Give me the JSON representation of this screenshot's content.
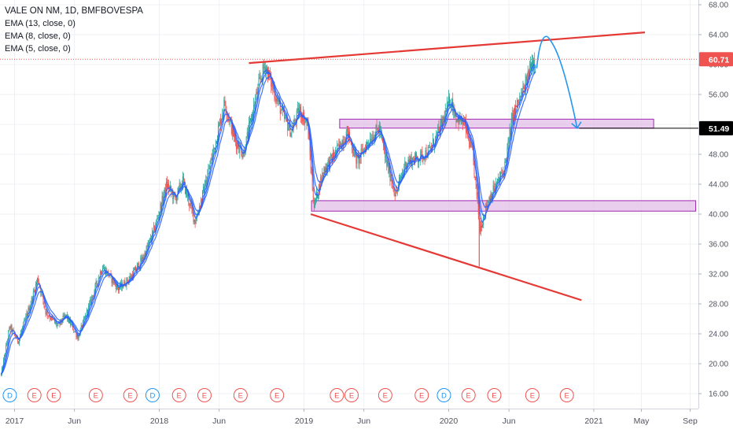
{
  "legend": {
    "title": "VALE ON NM, 1D, BMFBOVESPA",
    "ema13": "EMA (13, close, 0)",
    "ema8": "EMA (8, close, 0)",
    "ema5": "EMA (5, close, 0)"
  },
  "colors": {
    "up": "#26a69a",
    "down": "#ef5350",
    "ema": "#2962ff",
    "trendline": "#e53935",
    "zone_fill": "#e1bee7",
    "zone_border": "#9c27b0",
    "projection": "#2196f3",
    "grid": "#eef0f3",
    "price_tag_red": "#ef5350",
    "price_tag_black": "#000000"
  },
  "price_tags": {
    "current": "60.71",
    "target": "51.49"
  },
  "chart_data": {
    "type": "candlestick",
    "title": "VALE ON NM, 1D, BMFBOVESPA",
    "series": [
      {
        "name": "EMA (13, close, 0)"
      },
      {
        "name": "EMA (8, close, 0)"
      },
      {
        "name": "EMA (5, close, 0)"
      }
    ],
    "y_ticks": [
      "16.00",
      "20.00",
      "24.00",
      "28.00",
      "32.00",
      "36.00",
      "40.00",
      "44.00",
      "48.00",
      "52.00",
      "56.00",
      "60.00",
      "64.00",
      "68.00"
    ],
    "ylim": [
      14.5,
      68.5
    ],
    "x_ticks": [
      "2017",
      "Jun",
      "2018",
      "Jun",
      "2019",
      "Jun",
      "2020",
      "Jun",
      "2021",
      "May",
      "Sep"
    ],
    "x_tick_dates": [
      "2017-01-01",
      "2017-06-01",
      "2018-01-01",
      "2018-06-01",
      "2019-01-01",
      "2019-06-01",
      "2020-01-01",
      "2020-06-01",
      "2021-01-01",
      "2021-05-01",
      "2021-09-01"
    ],
    "price_path": [
      [
        "2016-11-28",
        18.5
      ],
      [
        "2016-12-20",
        25.0
      ],
      [
        "2017-01-10",
        23.0
      ],
      [
        "2017-02-10",
        28.0
      ],
      [
        "2017-03-01",
        31.5
      ],
      [
        "2017-03-20",
        27.0
      ],
      [
        "2017-04-20",
        25.0
      ],
      [
        "2017-05-10",
        26.5
      ],
      [
        "2017-06-10",
        23.5
      ],
      [
        "2017-07-10",
        28.0
      ],
      [
        "2017-08-10",
        33.0
      ],
      [
        "2017-08-25",
        32.0
      ],
      [
        "2017-09-20",
        30.0
      ],
      [
        "2017-10-20",
        31.5
      ],
      [
        "2017-11-20",
        34.0
      ],
      [
        "2017-12-20",
        38.0
      ],
      [
        "2018-01-20",
        44.0
      ],
      [
        "2018-02-10",
        42.0
      ],
      [
        "2018-03-01",
        44.5
      ],
      [
        "2018-04-01",
        39.0
      ],
      [
        "2018-04-20",
        42.5
      ],
      [
        "2018-05-20",
        49.0
      ],
      [
        "2018-06-15",
        55.0
      ],
      [
        "2018-07-10",
        50.0
      ],
      [
        "2018-08-01",
        48.0
      ],
      [
        "2018-08-20",
        52.5
      ],
      [
        "2018-09-10",
        57.5
      ],
      [
        "2018-09-25",
        60.0
      ],
      [
        "2018-10-20",
        56.0
      ],
      [
        "2018-11-10",
        53.0
      ],
      [
        "2018-11-30",
        51.0
      ],
      [
        "2018-12-20",
        54.0
      ],
      [
        "2019-01-10",
        52.0
      ],
      [
        "2019-01-26",
        41.0
      ],
      [
        "2019-02-20",
        46.0
      ],
      [
        "2019-03-20",
        48.0
      ],
      [
        "2019-04-20",
        51.0
      ],
      [
        "2019-05-15",
        47.0
      ],
      [
        "2019-06-15",
        50.0
      ],
      [
        "2019-07-10",
        51.5
      ],
      [
        "2019-07-25",
        47.5
      ],
      [
        "2019-08-20",
        42.5
      ],
      [
        "2019-09-15",
        47.0
      ],
      [
        "2019-10-15",
        47.5
      ],
      [
        "2019-11-15",
        48.5
      ],
      [
        "2019-12-15",
        52.0
      ],
      [
        "2020-01-05",
        55.5
      ],
      [
        "2020-01-20",
        53.0
      ],
      [
        "2020-02-10",
        52.0
      ],
      [
        "2020-03-01",
        48.0
      ],
      [
        "2020-03-20",
        38.0
      ],
      [
        "2020-04-10",
        42.0
      ],
      [
        "2020-05-01",
        44.0
      ],
      [
        "2020-05-20",
        46.0
      ],
      [
        "2020-06-10",
        53.0
      ],
      [
        "2020-06-25",
        55.0
      ],
      [
        "2020-07-15",
        57.5
      ],
      [
        "2020-07-28",
        60.5
      ],
      [
        "2020-08-07",
        60.7
      ]
    ],
    "annotations": {
      "upper_trendline": [
        [
          "2018-08-15",
          60.2
        ],
        [
          "2021-05-10",
          64.3
        ]
      ],
      "lower_trendline": [
        [
          "2019-01-18",
          40.0
        ],
        [
          "2020-12-01",
          28.5
        ]
      ],
      "resistance_zone": {
        "start": "2019-04-01",
        "end": "2021-06-01",
        "low": 51.5,
        "high": 52.7
      },
      "support_zone": {
        "start": "2019-01-20",
        "end": "2021-09-15",
        "low": 40.4,
        "high": 41.8
      },
      "projection_arrow": [
        [
          "2020-08-10",
          59.5
        ],
        [
          "2020-09-10",
          63.5
        ],
        [
          "2020-10-10",
          62.0
        ],
        [
          "2020-11-20",
          51.5
        ]
      ],
      "current_price_line": 60.71,
      "target_price_line": 51.49
    },
    "events": [
      {
        "label": "D",
        "kind": "dividend",
        "date": "2016-12-20"
      },
      {
        "label": "E",
        "kind": "earnings",
        "date": "2017-02-20"
      },
      {
        "label": "E",
        "kind": "earnings",
        "date": "2017-04-10"
      },
      {
        "label": "E",
        "kind": "earnings",
        "date": "2017-07-25"
      },
      {
        "label": "E",
        "kind": "earnings",
        "date": "2017-10-20"
      },
      {
        "label": "D",
        "kind": "dividend",
        "date": "2017-12-15"
      },
      {
        "label": "E",
        "kind": "earnings",
        "date": "2018-02-20"
      },
      {
        "label": "E",
        "kind": "earnings",
        "date": "2018-04-25"
      },
      {
        "label": "E",
        "kind": "earnings",
        "date": "2018-07-25"
      },
      {
        "label": "E",
        "kind": "earnings",
        "date": "2018-10-25"
      },
      {
        "label": "E",
        "kind": "earnings",
        "date": "2019-03-25"
      },
      {
        "label": "E",
        "kind": "earnings",
        "date": "2019-05-01"
      },
      {
        "label": "E",
        "kind": "earnings",
        "date": "2019-07-25"
      },
      {
        "label": "E",
        "kind": "earnings",
        "date": "2019-10-25"
      },
      {
        "label": "D",
        "kind": "dividend",
        "date": "2019-12-20"
      },
      {
        "label": "E",
        "kind": "earnings",
        "date": "2020-02-20"
      },
      {
        "label": "E",
        "kind": "earnings",
        "date": "2020-04-25"
      },
      {
        "label": "E",
        "kind": "earnings",
        "date": "2020-07-30"
      },
      {
        "label": "E",
        "kind": "earnings",
        "date": "2020-10-25"
      }
    ]
  }
}
